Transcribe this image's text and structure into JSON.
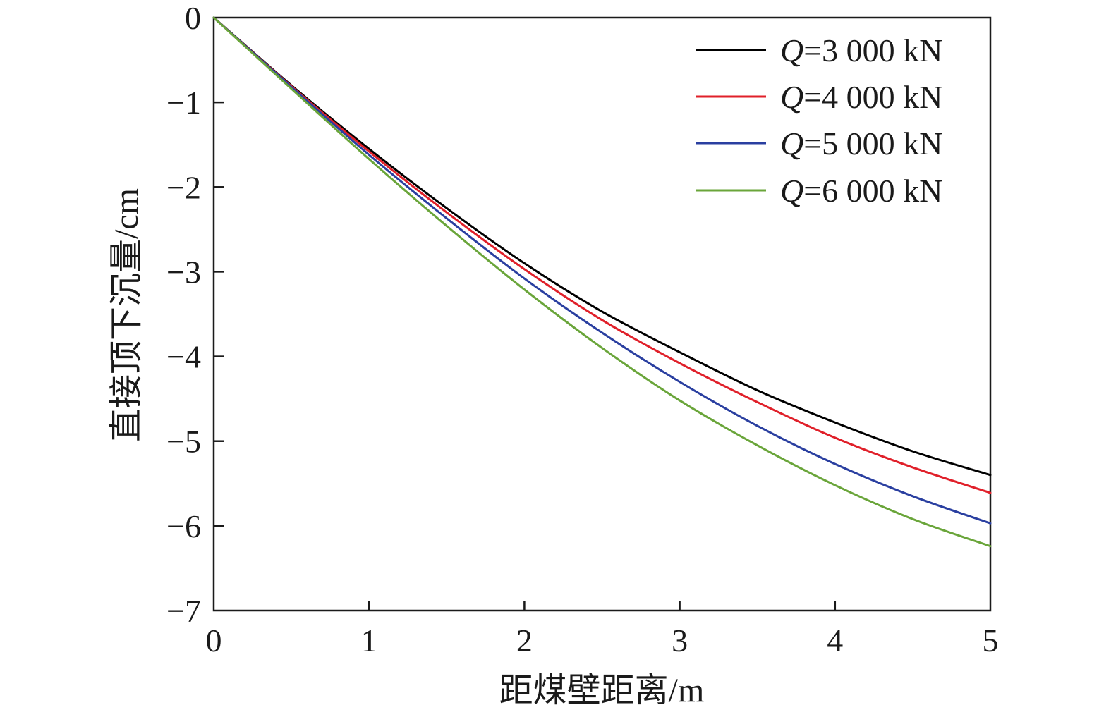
{
  "chart_data": {
    "type": "line",
    "title": "",
    "xlabel": "距煤壁距离/m",
    "ylabel": "直接顶下沉量/cm",
    "xlim": [
      0,
      5
    ],
    "ylim": [
      -7,
      0
    ],
    "xticks": [
      0,
      1,
      2,
      3,
      4,
      5
    ],
    "yticks": [
      0,
      -1,
      -2,
      -3,
      -4,
      -5,
      -6,
      -7
    ],
    "xtick_labels": [
      "0",
      "1",
      "2",
      "3",
      "4",
      "5"
    ],
    "ytick_labels": [
      "0",
      "−1",
      "−2",
      "−3",
      "−4",
      "−5",
      "−6",
      "−7"
    ],
    "grid": false,
    "legend_position": "top-right",
    "x": [
      0,
      0.5,
      1,
      1.5,
      2,
      2.5,
      3,
      3.5,
      4,
      4.5,
      5
    ],
    "series": [
      {
        "name": "Q=3 000 kN",
        "label_prefix": "Q",
        "label_suffix": "=3 000 kN",
        "color": "#000000",
        "values": [
          0,
          -0.8,
          -1.55,
          -2.25,
          -2.9,
          -3.47,
          -3.95,
          -4.4,
          -4.78,
          -5.12,
          -5.4
        ]
      },
      {
        "name": "Q=4 000 kN",
        "label_prefix": "Q",
        "label_suffix": "=4 000 kN",
        "color": "#e0202a",
        "values": [
          0,
          -0.81,
          -1.58,
          -2.3,
          -2.97,
          -3.57,
          -4.08,
          -4.54,
          -4.96,
          -5.31,
          -5.61
        ]
      },
      {
        "name": "Q=5 000 kN",
        "label_prefix": "Q",
        "label_suffix": "=5 000 kN",
        "color": "#2a3fa0",
        "values": [
          0,
          -0.82,
          -1.62,
          -2.37,
          -3.08,
          -3.72,
          -4.3,
          -4.82,
          -5.27,
          -5.65,
          -5.97
        ]
      },
      {
        "name": "Q=6 000 kN",
        "label_prefix": "Q",
        "label_suffix": "=6 000 kN",
        "color": "#6aa53a",
        "values": [
          0,
          -0.84,
          -1.67,
          -2.46,
          -3.21,
          -3.9,
          -4.52,
          -5.05,
          -5.52,
          -5.92,
          -6.24
        ]
      }
    ]
  }
}
